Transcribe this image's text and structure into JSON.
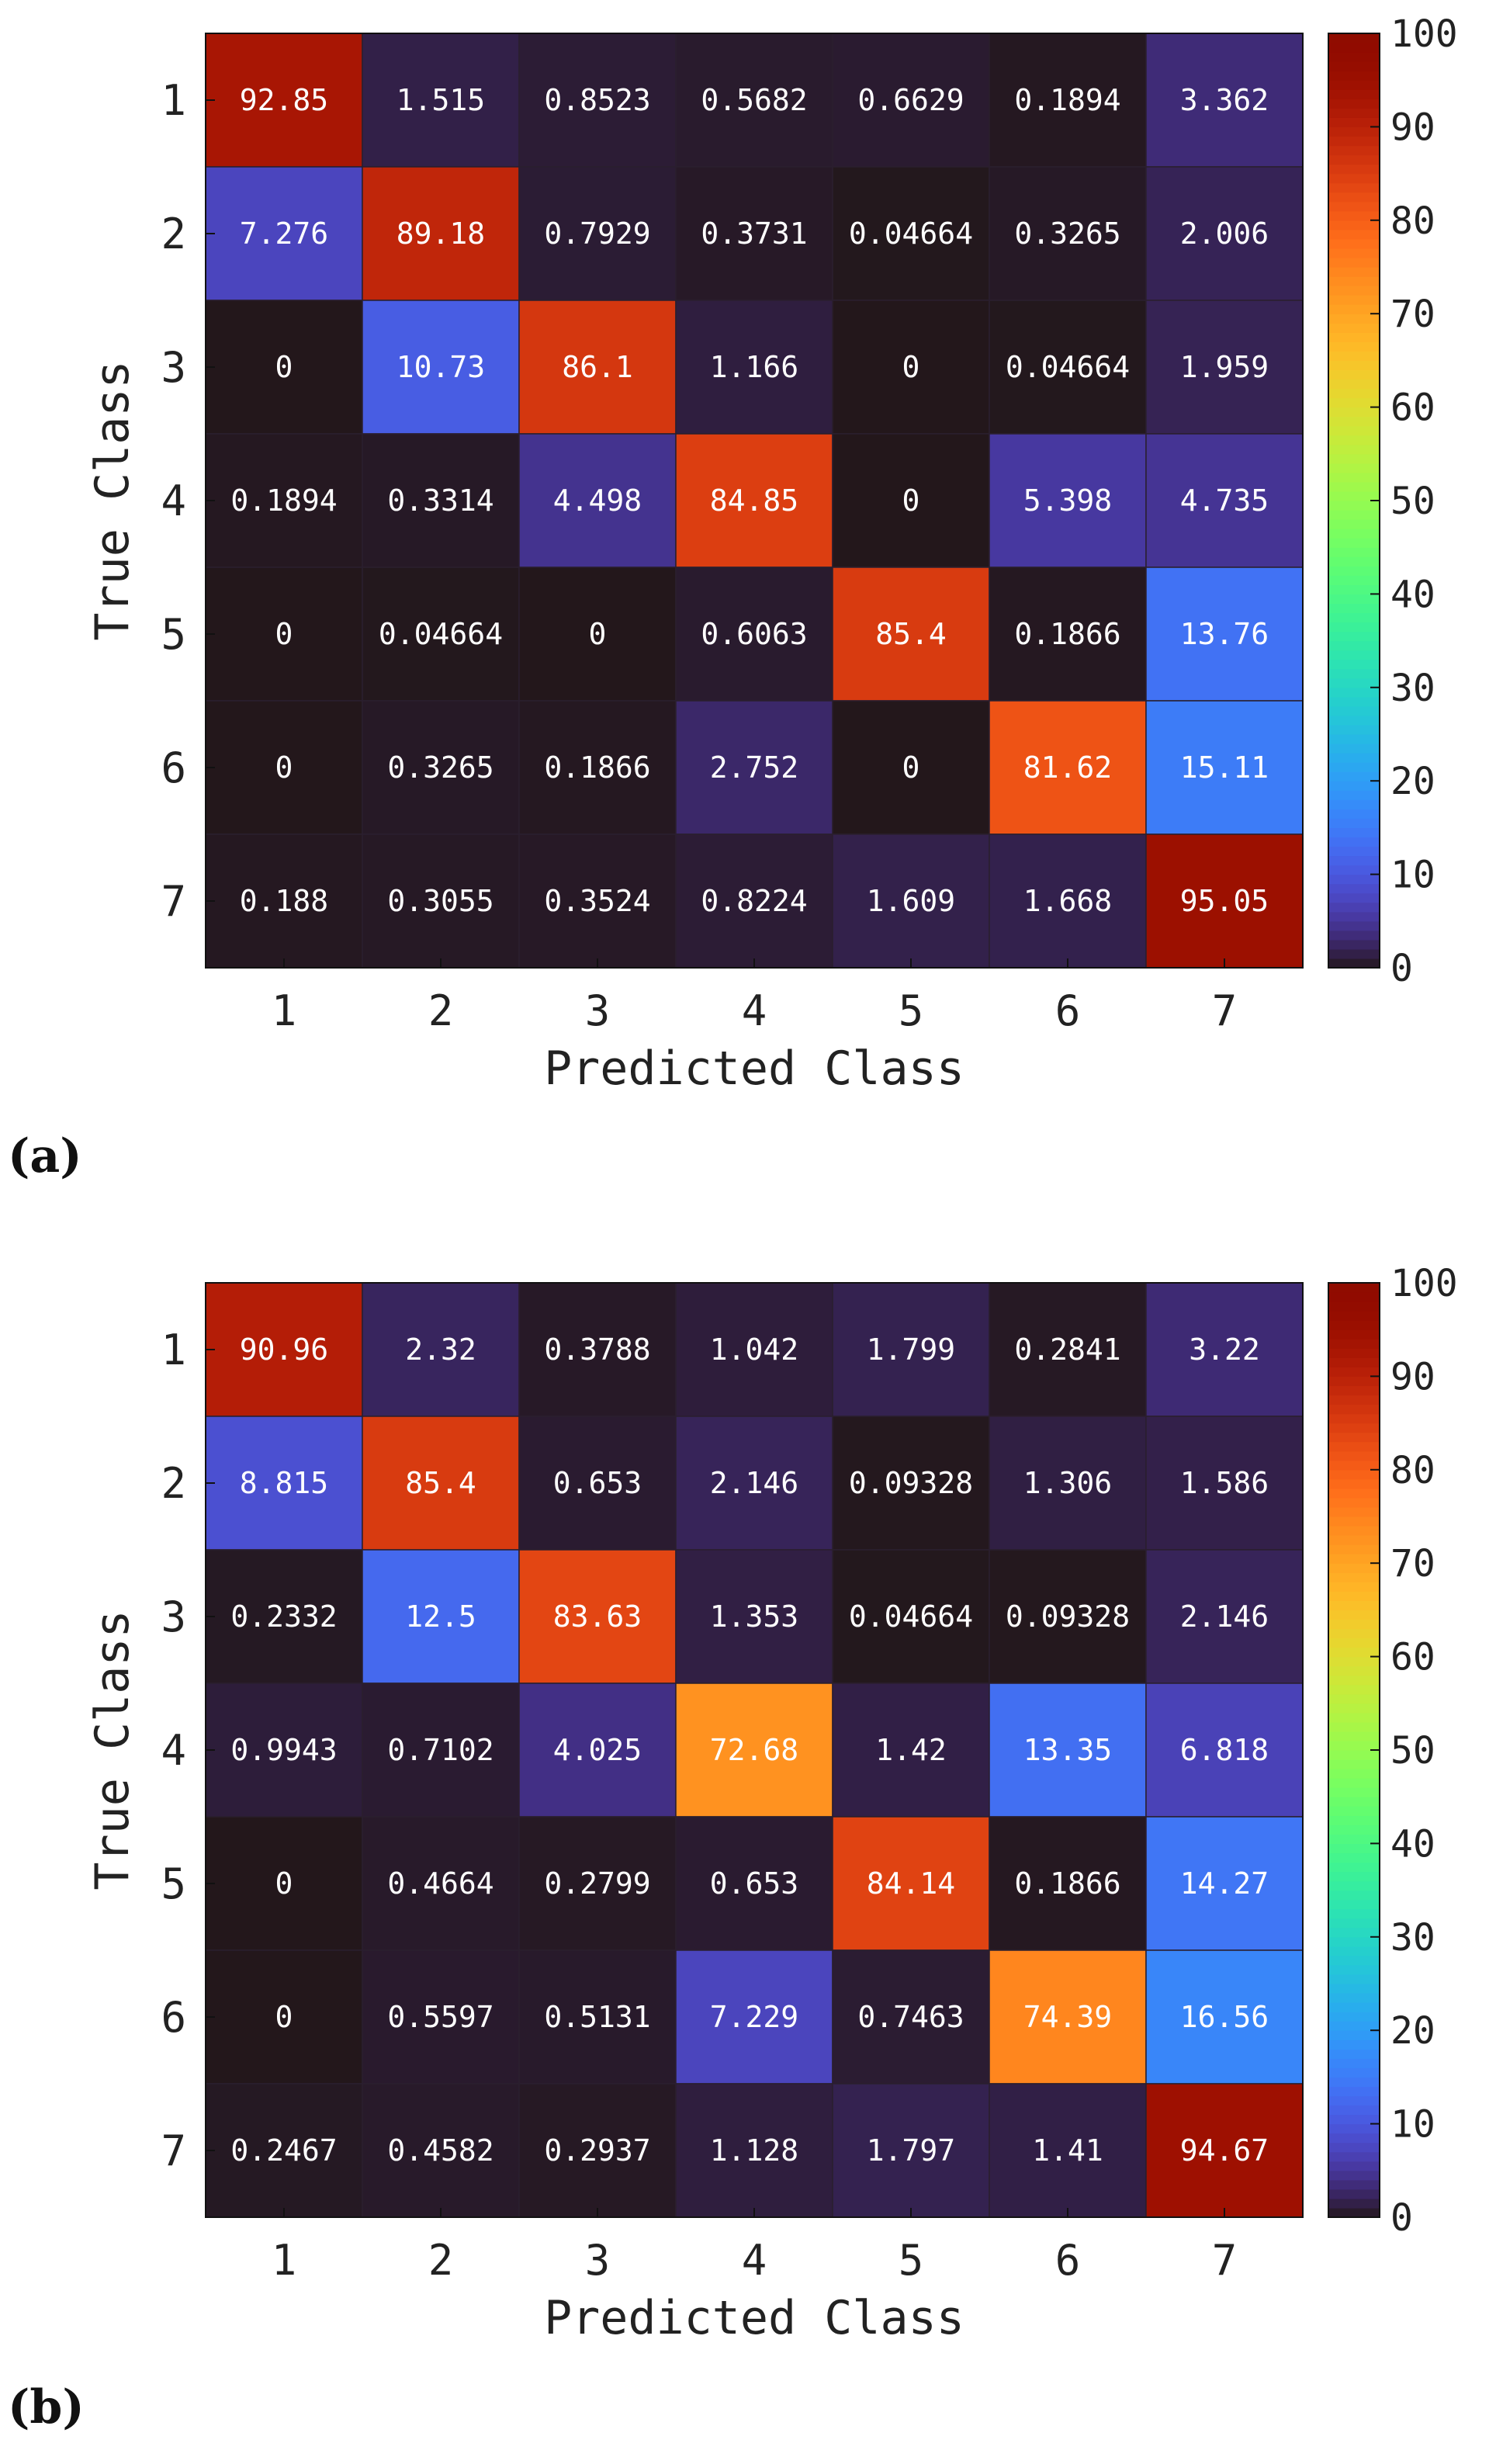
{
  "colorbar": {
    "ticks": [
      "0",
      "10",
      "20",
      "30",
      "40",
      "50",
      "60",
      "70",
      "80",
      "90",
      "100"
    ],
    "range": [
      0,
      100
    ],
    "colormap": "turbo"
  },
  "chart_data": [
    {
      "type": "heatmap",
      "panel_label": "(a)",
      "xlabel": "Predicted Class",
      "ylabel": "True Class",
      "x_categories": [
        "1",
        "2",
        "3",
        "4",
        "5",
        "6",
        "7"
      ],
      "y_categories": [
        "1",
        "2",
        "3",
        "4",
        "5",
        "6",
        "7"
      ],
      "values": [
        [
          "92.85",
          "1.515",
          "0.8523",
          "0.5682",
          "0.6629",
          "0.1894",
          "3.362"
        ],
        [
          "7.276",
          "89.18",
          "0.7929",
          "0.3731",
          "0.04664",
          "0.3265",
          "2.006"
        ],
        [
          "0",
          "10.73",
          "86.1",
          "1.166",
          "0",
          "0.04664",
          "1.959"
        ],
        [
          "0.1894",
          "0.3314",
          "4.498",
          "84.85",
          "0",
          "5.398",
          "4.735"
        ],
        [
          "0",
          "0.04664",
          "0",
          "0.6063",
          "85.4",
          "0.1866",
          "13.76"
        ],
        [
          "0",
          "0.3265",
          "0.1866",
          "2.752",
          "0",
          "81.62",
          "15.11"
        ],
        [
          "0.188",
          "0.3055",
          "0.3524",
          "0.8224",
          "1.609",
          "1.668",
          "95.05"
        ]
      ],
      "zlim": [
        0,
        100
      ]
    },
    {
      "type": "heatmap",
      "panel_label": "(b)",
      "xlabel": "Predicted Class",
      "ylabel": "True Class",
      "x_categories": [
        "1",
        "2",
        "3",
        "4",
        "5",
        "6",
        "7"
      ],
      "y_categories": [
        "1",
        "2",
        "3",
        "4",
        "5",
        "6",
        "7"
      ],
      "values": [
        [
          "90.96",
          "2.32",
          "0.3788",
          "1.042",
          "1.799",
          "0.2841",
          "3.22"
        ],
        [
          "8.815",
          "85.4",
          "0.653",
          "2.146",
          "0.09328",
          "1.306",
          "1.586"
        ],
        [
          "0.2332",
          "12.5",
          "83.63",
          "1.353",
          "0.04664",
          "0.09328",
          "2.146"
        ],
        [
          "0.9943",
          "0.7102",
          "4.025",
          "72.68",
          "1.42",
          "13.35",
          "6.818"
        ],
        [
          "0",
          "0.4664",
          "0.2799",
          "0.653",
          "84.14",
          "0.1866",
          "14.27"
        ],
        [
          "0",
          "0.5597",
          "0.5131",
          "7.229",
          "0.7463",
          "74.39",
          "16.56"
        ],
        [
          "0.2467",
          "0.4582",
          "0.2937",
          "1.128",
          "1.797",
          "1.41",
          "94.67"
        ]
      ],
      "zlim": [
        0,
        100
      ]
    }
  ]
}
